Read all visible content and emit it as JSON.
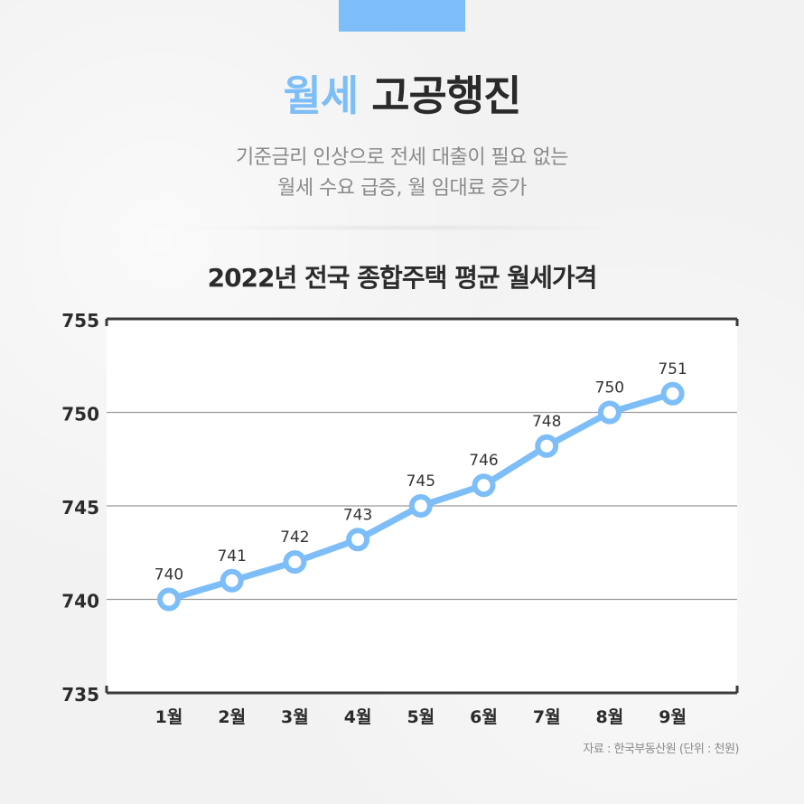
{
  "header": {
    "title_accent": "월세",
    "title_rest": "고공행진",
    "subtitle_lines": [
      "기준금리 인상으로 전세 대출이 필요 없는",
      "월세 수요 급증, 월 임대료 증가"
    ]
  },
  "colors": {
    "accent": "#7dbef8",
    "line": "#7dbef8",
    "text_dark": "#2b2b2b",
    "grid": "#9a9a9a"
  },
  "chart_data": {
    "type": "line",
    "title": "2022년 전국 종합주택 평균 월세가격",
    "categories": [
      "1월",
      "2월",
      "3월",
      "4월",
      "5월",
      "6월",
      "7월",
      "8월",
      "9월"
    ],
    "values": [
      740,
      741,
      742,
      743.2,
      745,
      746.1,
      748.2,
      750,
      751
    ],
    "data_labels": [
      "740",
      "741",
      "742",
      "743",
      "745",
      "746",
      "748",
      "750",
      "751"
    ],
    "ylim": [
      735,
      755
    ],
    "yticks": [
      735,
      740,
      745,
      750,
      755
    ],
    "grid": true,
    "xlabel": "",
    "ylabel": ""
  },
  "footer": {
    "source": "자료 : 한국부동산원 (단위 : 천원)"
  }
}
